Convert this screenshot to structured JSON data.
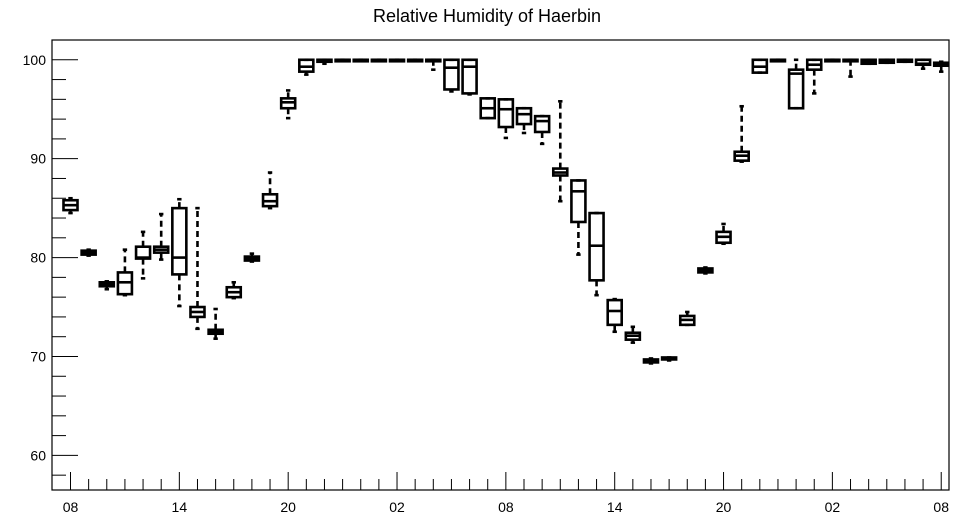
{
  "chart_data": {
    "type": "box",
    "title": "Relative Humidity of Haerbin",
    "xlabel": "",
    "ylabel": "",
    "ylim": [
      56.5,
      102
    ],
    "yticks": [
      60,
      70,
      80,
      90,
      100
    ],
    "x_tick_labels": [
      "08",
      "14",
      "20",
      "02",
      "08",
      "14",
      "20",
      "02",
      "08"
    ],
    "x_tick_positions": [
      0,
      6,
      12,
      18,
      24,
      30,
      36,
      42,
      48
    ],
    "grid": false,
    "boxes": [
      {
        "x": 0,
        "min": 84.5,
        "q1": 84.8,
        "median": 85.3,
        "q3": 85.8,
        "max": 86.0
      },
      {
        "x": 1,
        "min": 80.2,
        "q1": 80.3,
        "median": 80.5,
        "q3": 80.7,
        "max": 80.8
      },
      {
        "x": 2,
        "min": 76.8,
        "q1": 77.1,
        "median": 77.3,
        "q3": 77.5,
        "max": 77.6
      },
      {
        "x": 3,
        "min": 76.2,
        "q1": 76.3,
        "median": 77.5,
        "q3": 78.5,
        "max": 80.8
      },
      {
        "x": 4,
        "min": 77.9,
        "q1": 79.9,
        "median": 80.0,
        "q3": 81.1,
        "max": 82.6
      },
      {
        "x": 5,
        "min": 79.8,
        "q1": 80.5,
        "median": 80.8,
        "q3": 81.1,
        "max": 84.4
      },
      {
        "x": 6,
        "min": 75.1,
        "q1": 78.3,
        "median": 80.0,
        "q3": 85.0,
        "max": 85.9
      },
      {
        "x": 7,
        "min": 72.8,
        "q1": 74.0,
        "median": 74.5,
        "q3": 75.0,
        "max": 85.0
      },
      {
        "x": 8,
        "min": 71.8,
        "q1": 72.3,
        "median": 72.5,
        "q3": 72.7,
        "max": 74.8
      },
      {
        "x": 9,
        "min": 75.9,
        "q1": 76.0,
        "median": 76.5,
        "q3": 77.0,
        "max": 77.5
      },
      {
        "x": 10,
        "min": 79.6,
        "q1": 79.7,
        "median": 79.9,
        "q3": 80.1,
        "max": 80.4
      },
      {
        "x": 11,
        "min": 85.0,
        "q1": 85.2,
        "median": 85.7,
        "q3": 86.4,
        "max": 88.6
      },
      {
        "x": 12,
        "min": 94.1,
        "q1": 95.1,
        "median": 95.7,
        "q3": 96.1,
        "max": 96.9
      },
      {
        "x": 13,
        "min": 98.5,
        "q1": 98.8,
        "median": 99.3,
        "q3": 100.0,
        "max": 100.0
      },
      {
        "x": 14,
        "min": 99.6,
        "q1": 99.8,
        "median": 100.0,
        "q3": 100.0,
        "max": 100.0
      },
      {
        "x": 15,
        "min": 100.0,
        "q1": 100.0,
        "median": 100.0,
        "q3": 100.0,
        "max": 100.0
      },
      {
        "x": 16,
        "min": 100.0,
        "q1": 100.0,
        "median": 100.0,
        "q3": 100.0,
        "max": 100.0
      },
      {
        "x": 17,
        "min": 100.0,
        "q1": 100.0,
        "median": 100.0,
        "q3": 100.0,
        "max": 100.0
      },
      {
        "x": 18,
        "min": 100.0,
        "q1": 100.0,
        "median": 100.0,
        "q3": 100.0,
        "max": 100.0
      },
      {
        "x": 19,
        "min": 100.0,
        "q1": 100.0,
        "median": 100.0,
        "q3": 100.0,
        "max": 100.0
      },
      {
        "x": 20,
        "min": 99.0,
        "q1": 100.0,
        "median": 100.0,
        "q3": 100.0,
        "max": 100.0
      },
      {
        "x": 21,
        "min": 96.8,
        "q1": 97.0,
        "median": 99.2,
        "q3": 100.0,
        "max": 100.0
      },
      {
        "x": 22,
        "min": 96.5,
        "q1": 96.6,
        "median": 99.3,
        "q3": 100.0,
        "max": 100.0
      },
      {
        "x": 23,
        "min": 94.1,
        "q1": 94.1,
        "median": 95.1,
        "q3": 96.1,
        "max": 96.1
      },
      {
        "x": 24,
        "min": 92.1,
        "q1": 93.2,
        "median": 95.0,
        "q3": 96.0,
        "max": 96.0
      },
      {
        "x": 25,
        "min": 92.6,
        "q1": 93.5,
        "median": 94.5,
        "q3": 95.1,
        "max": 95.1
      },
      {
        "x": 26,
        "min": 91.5,
        "q1": 92.7,
        "median": 93.8,
        "q3": 94.3,
        "max": 94.3
      },
      {
        "x": 27,
        "min": 85.7,
        "q1": 88.3,
        "median": 88.6,
        "q3": 89.0,
        "max": 95.8
      },
      {
        "x": 28,
        "min": 80.3,
        "q1": 83.6,
        "median": 86.7,
        "q3": 87.8,
        "max": 87.8
      },
      {
        "x": 29,
        "min": 76.2,
        "q1": 77.7,
        "median": 81.2,
        "q3": 84.5,
        "max": 84.5
      },
      {
        "x": 30,
        "min": 72.5,
        "q1": 73.2,
        "median": 74.6,
        "q3": 75.7,
        "max": 75.8
      },
      {
        "x": 31,
        "min": 71.4,
        "q1": 71.7,
        "median": 72.1,
        "q3": 72.4,
        "max": 73.0
      },
      {
        "x": 32,
        "min": 69.3,
        "q1": 69.4,
        "median": 69.6,
        "q3": 69.7,
        "max": 69.8
      },
      {
        "x": 33,
        "min": 69.6,
        "q1": 69.7,
        "median": 69.8,
        "q3": 69.9,
        "max": 69.9
      },
      {
        "x": 34,
        "min": 73.2,
        "q1": 73.2,
        "median": 73.7,
        "q3": 74.1,
        "max": 74.5
      },
      {
        "x": 35,
        "min": 78.4,
        "q1": 78.5,
        "median": 78.7,
        "q3": 78.9,
        "max": 79.0
      },
      {
        "x": 36,
        "min": 81.4,
        "q1": 81.5,
        "median": 82.1,
        "q3": 82.6,
        "max": 83.4
      },
      {
        "x": 37,
        "min": 89.7,
        "q1": 89.8,
        "median": 90.3,
        "q3": 90.7,
        "max": 95.3
      },
      {
        "x": 38,
        "min": 98.7,
        "q1": 98.7,
        "median": 99.3,
        "q3": 100.0,
        "max": 100.0
      },
      {
        "x": 39,
        "min": 100.0,
        "q1": 100.0,
        "median": 100.0,
        "q3": 100.0,
        "max": 100.0
      },
      {
        "x": 40,
        "min": 95.1,
        "q1": 95.1,
        "median": 98.6,
        "q3": 99.0,
        "max": 100.0
      },
      {
        "x": 41,
        "min": 96.6,
        "q1": 99.0,
        "median": 99.5,
        "q3": 100.0,
        "max": 100.0
      },
      {
        "x": 42,
        "min": 100.0,
        "q1": 100.0,
        "median": 100.0,
        "q3": 100.0,
        "max": 100.0
      },
      {
        "x": 43,
        "min": 98.3,
        "q1": 100.0,
        "median": 100.0,
        "q3": 100.0,
        "max": 100.0
      },
      {
        "x": 44,
        "min": 99.6,
        "q1": 99.6,
        "median": 99.8,
        "q3": 100.0,
        "max": 100.0
      },
      {
        "x": 45,
        "min": 99.7,
        "q1": 99.7,
        "median": 99.9,
        "q3": 100.0,
        "max": 100.0
      },
      {
        "x": 46,
        "min": 99.8,
        "q1": 99.8,
        "median": 99.9,
        "q3": 100.0,
        "max": 100.0
      },
      {
        "x": 47,
        "min": 99.1,
        "q1": 99.5,
        "median": 99.6,
        "q3": 100.0,
        "max": 100.0
      },
      {
        "x": 48,
        "min": 98.8,
        "q1": 99.4,
        "median": 99.6,
        "q3": 99.7,
        "max": 99.8
      }
    ]
  }
}
